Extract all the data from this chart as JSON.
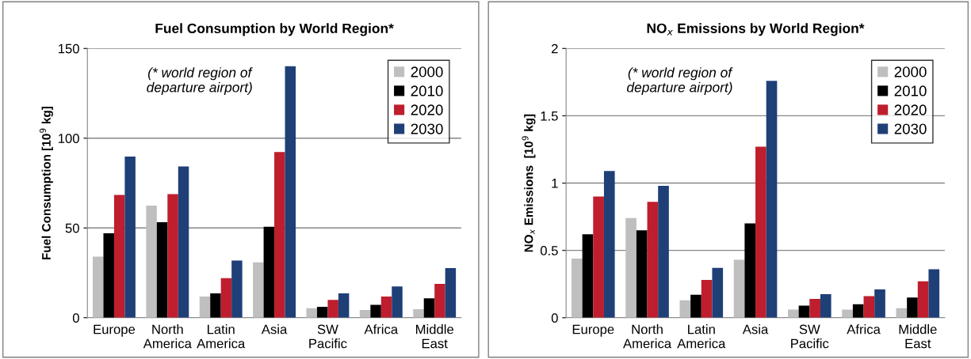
{
  "chart_data": [
    {
      "type": "bar",
      "title": "Fuel Consumption by World Region*",
      "ylabel": "Fuel Consumption [10$^{9}$ kg]",
      "categories": [
        "Europe",
        "North\nAmerica",
        "Latin\nAmerica",
        "Asia",
        "SW\nPacific",
        "Africa",
        "Middle\nEast"
      ],
      "series": [
        {
          "name": "2000",
          "color": "#bfbfbf",
          "values": [
            34.1,
            62.5,
            11.8,
            30.9,
            5.3,
            4.3,
            4.7
          ]
        },
        {
          "name": "2010",
          "color": "#000000",
          "values": [
            47,
            53.2,
            13.6,
            50.7,
            6.1,
            7.2,
            10.8
          ]
        },
        {
          "name": "2020",
          "color": "#be1e2d",
          "values": [
            68.4,
            68.9,
            22,
            92.3,
            9.9,
            11.8,
            18.8
          ]
        },
        {
          "name": "2030",
          "color": "#1f3f77",
          "values": [
            89.8,
            84.3,
            31.8,
            140.1,
            13.6,
            17.4,
            27.7
          ]
        }
      ],
      "ylim": [
        0,
        150
      ],
      "yticks": [
        0,
        50,
        100,
        150
      ],
      "grid": "y",
      "legend": "top right",
      "annotations": [
        "(* world region of\ndeparture airport)"
      ]
    },
    {
      "type": "bar",
      "title": "NO$_{x}$ Emissions by World Region*",
      "ylabel": "NO$_{x}$ Emissions  [10$^{9}$ kg]",
      "categories": [
        "Europe",
        "North\nAmerica",
        "Latin\nAmerica",
        "Asia",
        "SW\nPacific",
        "Africa",
        "Middle\nEast"
      ],
      "series": [
        {
          "name": "2000",
          "color": "#bfbfbf",
          "values": [
            0.44,
            0.74,
            0.13,
            0.43,
            0.06,
            0.06,
            0.07
          ]
        },
        {
          "name": "2010",
          "color": "#000000",
          "values": [
            0.62,
            0.65,
            0.17,
            0.7,
            0.09,
            0.1,
            0.15
          ]
        },
        {
          "name": "2020",
          "color": "#be1e2d",
          "values": [
            0.9,
            0.86,
            0.28,
            1.27,
            0.14,
            0.16,
            0.27
          ]
        },
        {
          "name": "2030",
          "color": "#1f3f77",
          "values": [
            1.09,
            0.98,
            0.37,
            1.76,
            0.175,
            0.21,
            0.36
          ]
        }
      ],
      "ylim": [
        0,
        2
      ],
      "yticks": [
        0,
        {
          "value": 0.5,
          "label": "0.5"
        },
        1,
        {
          "value": 1.5,
          "label": "1.5"
        },
        2
      ],
      "grid": "y",
      "legend": "top right",
      "annotations": [
        "(* world region of\ndeparture airport)"
      ]
    }
  ]
}
